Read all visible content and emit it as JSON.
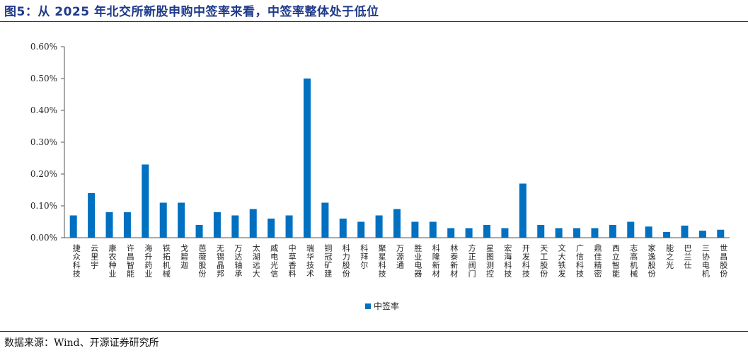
{
  "title": "图5：从 2025 年北交所新股申购中签率来看，中签率整体处于低位",
  "source": "数据来源：Wind、开源证券研究所",
  "chart_data": {
    "type": "bar",
    "categories": [
      "捷众科技",
      "云里宇",
      "康农种业",
      "许昌智能",
      "海升药业",
      "铁拓机械",
      "戈碧迦",
      "芭薇股份",
      "无锡晶邦",
      "万达轴承",
      "太湖远大",
      "威电光信",
      "中草香料",
      "瑞华技术",
      "铜冠矿建",
      "科力股份",
      "科拜尔",
      "聚星科技",
      "万源通",
      "胜业电器",
      "科隆新材",
      "林泰新材",
      "方正阀门",
      "星图测控",
      "宏海科技",
      "开发科技",
      "天工股份",
      "文大铁发",
      "广信科技",
      "鼎佳精密",
      "西立智能",
      "志高机械",
      "家逸股份",
      "能之光",
      "巴兰仕",
      "三协电机",
      "世昌股份"
    ],
    "series": [
      {
        "name": "中签率",
        "values": [
          0.07,
          0.14,
          0.08,
          0.08,
          0.23,
          0.11,
          0.11,
          0.04,
          0.08,
          0.07,
          0.09,
          0.06,
          0.07,
          0.5,
          0.11,
          0.06,
          0.05,
          0.07,
          0.09,
          0.05,
          0.05,
          0.03,
          0.03,
          0.04,
          0.03,
          0.17,
          0.04,
          0.03,
          0.03,
          0.03,
          0.04,
          0.05,
          0.035,
          0.018,
          0.038,
          0.022,
          0.025
        ]
      }
    ],
    "yticks": [
      "0.00%",
      "0.10%",
      "0.20%",
      "0.30%",
      "0.40%",
      "0.50%",
      "0.60%"
    ],
    "ylim": [
      0,
      0.6
    ],
    "color": "#0070c0",
    "legend_position": "bottom-center",
    "grid": false
  }
}
